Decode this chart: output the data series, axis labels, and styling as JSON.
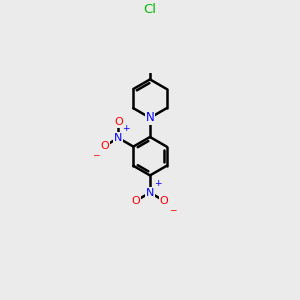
{
  "background_color": "#ebebeb",
  "bond_color": "#000000",
  "atom_colors": {
    "N": "#0000ff",
    "O": "#ff0000",
    "Cl": "#00bb00",
    "C": "#000000"
  },
  "bond_width": 1.8,
  "font_size_atom": 8.5,
  "fig_width": 3.0,
  "fig_height": 3.0,
  "dpi": 100
}
